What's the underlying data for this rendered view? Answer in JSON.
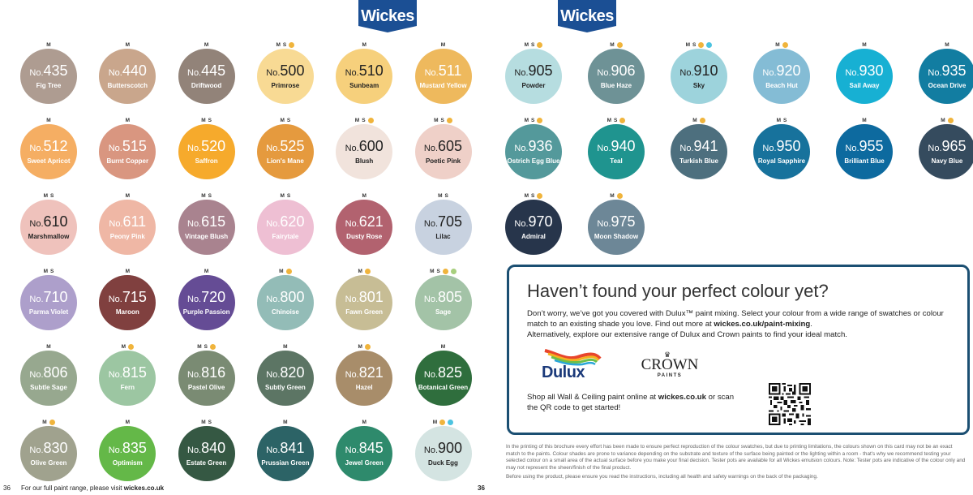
{
  "brand": {
    "logo_text": "Wickes",
    "logo_color": "#1b4f94"
  },
  "left_page": {
    "swatches": [
      {
        "no": "435",
        "name": "Fig Tree",
        "badges": [
          "M"
        ],
        "dots": [],
        "color": "#ae9c91",
        "text": "dark"
      },
      {
        "no": "440",
        "name": "Butterscotch",
        "badges": [
          "M"
        ],
        "dots": [],
        "color": "#c9a68c",
        "text": "dark"
      },
      {
        "no": "445",
        "name": "Driftwood",
        "badges": [
          "M"
        ],
        "dots": [],
        "color": "#928379",
        "text": "dark"
      },
      {
        "no": "500",
        "name": "Primrose",
        "badges": [
          "M",
          "S"
        ],
        "dots": [
          "orange"
        ],
        "color": "#f8da94",
        "text": "light"
      },
      {
        "no": "510",
        "name": "Sunbeam",
        "badges": [
          "M"
        ],
        "dots": [],
        "color": "#f6d07c",
        "text": "light"
      },
      {
        "no": "511",
        "name": "Mustard Yellow",
        "badges": [
          "M"
        ],
        "dots": [],
        "color": "#eeb95d",
        "text": "dark"
      },
      {
        "no": "512",
        "name": "Sweet Apricot",
        "badges": [
          "M"
        ],
        "dots": [],
        "color": "#f5ae63",
        "text": "dark"
      },
      {
        "no": "515",
        "name": "Burnt Copper",
        "badges": [
          "M"
        ],
        "dots": [],
        "color": "#d99680",
        "text": "dark"
      },
      {
        "no": "520",
        "name": "Saffron",
        "badges": [
          "M",
          "S"
        ],
        "dots": [],
        "color": "#f6aa2c",
        "text": "dark"
      },
      {
        "no": "525",
        "name": "Lion's Mane",
        "badges": [
          "M",
          "S"
        ],
        "dots": [],
        "color": "#e59a3e",
        "text": "dark"
      },
      {
        "no": "600",
        "name": "Blush",
        "badges": [
          "M",
          "S"
        ],
        "dots": [
          "orange"
        ],
        "color": "#f1e3dc",
        "text": "light"
      },
      {
        "no": "605",
        "name": "Poetic Pink",
        "badges": [
          "M",
          "S"
        ],
        "dots": [
          "orange"
        ],
        "color": "#efd0c8",
        "text": "light"
      },
      {
        "no": "610",
        "name": "Marshmallow",
        "badges": [
          "M",
          "S"
        ],
        "dots": [],
        "color": "#efc2bc",
        "text": "light"
      },
      {
        "no": "611",
        "name": "Peony Pink",
        "badges": [
          "M"
        ],
        "dots": [],
        "color": "#efb7a5",
        "text": "dark"
      },
      {
        "no": "615",
        "name": "Vintage Blush",
        "badges": [
          "M",
          "S"
        ],
        "dots": [],
        "color": "#a9838f",
        "text": "dark"
      },
      {
        "no": "620",
        "name": "Fairytale",
        "badges": [
          "M",
          "S"
        ],
        "dots": [],
        "color": "#eebfd3",
        "text": "dark"
      },
      {
        "no": "621",
        "name": "Dusty Rose",
        "badges": [
          "M"
        ],
        "dots": [],
        "color": "#b2626f",
        "text": "dark"
      },
      {
        "no": "705",
        "name": "Lilac",
        "badges": [
          "M",
          "S"
        ],
        "dots": [],
        "color": "#c8d2e0",
        "text": "light"
      },
      {
        "no": "710",
        "name": "Parma Violet",
        "badges": [
          "M",
          "S"
        ],
        "dots": [],
        "color": "#ad9fcb",
        "text": "dark"
      },
      {
        "no": "715",
        "name": "Maroon",
        "badges": [
          "M"
        ],
        "dots": [],
        "color": "#80403f",
        "text": "dark"
      },
      {
        "no": "720",
        "name": "Purple Passion",
        "badges": [
          "M"
        ],
        "dots": [],
        "color": "#654c95",
        "text": "dark"
      },
      {
        "no": "800",
        "name": "Chinoise",
        "badges": [
          "M"
        ],
        "dots": [
          "orange"
        ],
        "color": "#93bcb7",
        "text": "dark"
      },
      {
        "no": "801",
        "name": "Fawn Green",
        "badges": [
          "M"
        ],
        "dots": [
          "orange"
        ],
        "color": "#c7bd95",
        "text": "dark"
      },
      {
        "no": "805",
        "name": "Sage",
        "badges": [
          "M",
          "S"
        ],
        "dots": [
          "orange",
          "green"
        ],
        "color": "#a3c3a7",
        "text": "dark"
      },
      {
        "no": "806",
        "name": "Subtle Sage",
        "badges": [
          "M"
        ],
        "dots": [],
        "color": "#97a88f",
        "text": "dark"
      },
      {
        "no": "815",
        "name": "Fern",
        "badges": [
          "M"
        ],
        "dots": [
          "orange"
        ],
        "color": "#9cc6a2",
        "text": "dark"
      },
      {
        "no": "816",
        "name": "Pastel Olive",
        "badges": [
          "M",
          "S"
        ],
        "dots": [
          "orange"
        ],
        "color": "#7a8b73",
        "text": "dark"
      },
      {
        "no": "820",
        "name": "Subtly Green",
        "badges": [
          "M"
        ],
        "dots": [],
        "color": "#5c7564",
        "text": "dark"
      },
      {
        "no": "821",
        "name": "Hazel",
        "badges": [
          "M"
        ],
        "dots": [
          "orange"
        ],
        "color": "#a88d6a",
        "text": "dark"
      },
      {
        "no": "825",
        "name": "Botanical Green",
        "badges": [
          "M"
        ],
        "dots": [],
        "color": "#2f6e3d",
        "text": "dark"
      },
      {
        "no": "830",
        "name": "Olive Green",
        "badges": [
          "M"
        ],
        "dots": [
          "orange"
        ],
        "color": "#a0a28e",
        "text": "dark"
      },
      {
        "no": "835",
        "name": "Optimism",
        "badges": [
          "M"
        ],
        "dots": [],
        "color": "#64b848",
        "text": "dark"
      },
      {
        "no": "840",
        "name": "Estate Green",
        "badges": [
          "M",
          "S"
        ],
        "dots": [],
        "color": "#355843",
        "text": "dark"
      },
      {
        "no": "841",
        "name": "Prussian Green",
        "badges": [
          "M"
        ],
        "dots": [],
        "color": "#2c6366",
        "text": "dark"
      },
      {
        "no": "845",
        "name": "Jewel Green",
        "badges": [
          "M"
        ],
        "dots": [],
        "color": "#2e8a6c",
        "text": "dark"
      },
      {
        "no": "900",
        "name": "Duck Egg",
        "badges": [
          "M"
        ],
        "dots": [
          "orange",
          "blue"
        ],
        "color": "#d4e4e2",
        "text": "light"
      }
    ],
    "footer": {
      "page_number": "36",
      "text_prefix": "For our full paint range, please visit ",
      "link": "wickes.co.uk",
      "right_page_number": "36"
    }
  },
  "right_page": {
    "swatches": [
      {
        "no": "905",
        "name": "Powder",
        "badges": [
          "M",
          "S"
        ],
        "dots": [
          "orange"
        ],
        "color": "#b6dde0",
        "text": "light"
      },
      {
        "no": "906",
        "name": "Blue Haze",
        "badges": [
          "M"
        ],
        "dots": [
          "orange"
        ],
        "color": "#6e9296",
        "text": "dark"
      },
      {
        "no": "910",
        "name": "Sky",
        "badges": [
          "M",
          "S"
        ],
        "dots": [
          "orange",
          "blue"
        ],
        "color": "#9dd3dc",
        "text": "light"
      },
      {
        "no": "920",
        "name": "Beach Hut",
        "badges": [
          "M"
        ],
        "dots": [
          "orange"
        ],
        "color": "#84bcd5",
        "text": "dark"
      },
      {
        "no": "930",
        "name": "Sail Away",
        "badges": [
          "M"
        ],
        "dots": [],
        "color": "#17b0d3",
        "text": "dark"
      },
      {
        "no": "935",
        "name": "Ocean Drive",
        "badges": [
          "M"
        ],
        "dots": [],
        "color": "#127da1",
        "text": "dark"
      },
      {
        "no": "936",
        "name": "Ostrich Egg Blue",
        "badges": [
          "M",
          "S"
        ],
        "dots": [
          "orange"
        ],
        "color": "#54999b",
        "text": "dark"
      },
      {
        "no": "940",
        "name": "Teal",
        "badges": [
          "M",
          "S"
        ],
        "dots": [
          "orange"
        ],
        "color": "#1f948f",
        "text": "dark"
      },
      {
        "no": "941",
        "name": "Turkish Blue",
        "badges": [
          "M"
        ],
        "dots": [
          "orange"
        ],
        "color": "#4d6f7e",
        "text": "dark"
      },
      {
        "no": "950",
        "name": "Royal Sapphire",
        "badges": [
          "M",
          "S"
        ],
        "dots": [],
        "color": "#17729c",
        "text": "dark"
      },
      {
        "no": "955",
        "name": "Brilliant Blue",
        "badges": [
          "M"
        ],
        "dots": [],
        "color": "#0d6a9f",
        "text": "dark"
      },
      {
        "no": "965",
        "name": "Navy Blue",
        "badges": [
          "M"
        ],
        "dots": [
          "orange"
        ],
        "color": "#354b5e",
        "text": "dark"
      },
      {
        "no": "970",
        "name": "Admiral",
        "badges": [
          "M",
          "S"
        ],
        "dots": [
          "orange"
        ],
        "color": "#27354b",
        "text": "dark"
      },
      {
        "no": "975",
        "name": "Moon Shadow",
        "badges": [
          "M"
        ],
        "dots": [
          "orange"
        ],
        "color": "#6d8797",
        "text": "dark"
      }
    ],
    "promo": {
      "heading": "Haven’t found your perfect colour yet?",
      "body_1": "Don’t worry, we’ve got you covered with Dulux™ paint mixing. Select your colour from a wide range of swatches or colour match to an existing shade you love.  Find out more at ",
      "body_link": "wickes.co.uk/paint-mixing",
      "body_2": ".",
      "body_3": "Alternatively, explore our extensive range of Dulux and Crown paints to find your ideal match.",
      "dulux_logo": "Dulux",
      "crown_logo": "CROWN",
      "crown_sub": "PAINTS",
      "shop_prefix": "Shop all Wall & Ceiling paint online at ",
      "shop_link": "wickes.co.uk",
      "shop_suffix": " or scan the QR code to get started!",
      "border_color": "#1b4f72"
    },
    "disclaimer": {
      "p1": "In the printing of this brochure every effort has been made to ensure perfect reproduction of the colour swatches, but due to printing limitations, the colours shown on this card may not be an exact match to the paints. Colour shades are prone to variance depending on the substrate and texture of the surface being painted or the lighting within a room - that's why we recommend testing your selected colour on a small area of the actual surface before you make your final decision. Tester pots are available for all Wickes emulsion colours. Note: Tester pots are indicative of the colour only and may not represent the sheen/finish of the final product.",
      "p2": "Before using the product, please ensure you read the instructions, including all health and safety warnings on the back of the packaging."
    }
  }
}
